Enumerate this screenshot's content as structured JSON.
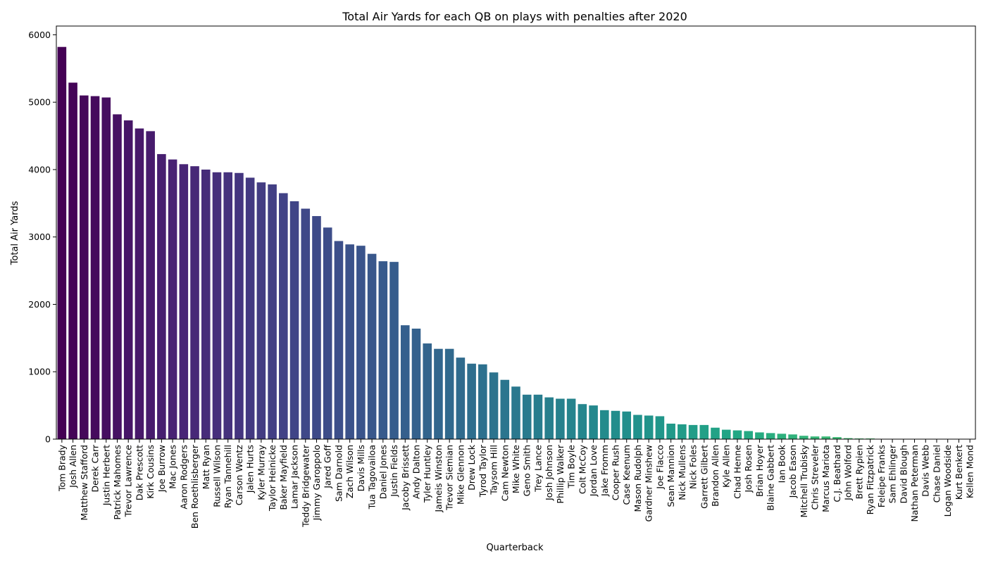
{
  "chart_data": {
    "type": "bar",
    "title": "Total Air Yards for each QB on plays with penalties after 2020",
    "xlabel": "Quarterback",
    "ylabel": "Total Air Yards",
    "ylim": [
      0,
      6130
    ],
    "yticks": [
      0,
      1000,
      2000,
      3000,
      4000,
      5000,
      6000
    ],
    "colormap": "viridis",
    "categories": [
      "Tom Brady",
      "Josh Allen",
      "Matthew Stafford",
      "Derek Carr",
      "Justin Herbert",
      "Patrick Mahomes",
      "Trevor Lawrence",
      "Dak Prescott",
      "Kirk Cousins",
      "Joe Burrow",
      "Mac Jones",
      "Aaron Rodgers",
      "Ben Roethlisberger",
      "Matt Ryan",
      "Russell Wilson",
      "Ryan Tannehill",
      "Carson Wentz",
      "Jalen Hurts",
      "Kyler Murray",
      "Taylor Heinicke",
      "Baker Mayfield",
      "Lamar Jackson",
      "Teddy Bridgewater",
      "Jimmy Garoppolo",
      "Jared Goff",
      "Sam Darnold",
      "Zach Wilson",
      "Davis Mills",
      "Tua Tagovailoa",
      "Daniel Jones",
      "Justin Fields",
      "Jacoby Brissett",
      "Andy Dalton",
      "Tyler Huntley",
      "Jameis Winston",
      "Trevor Siemian",
      "Mike Glennon",
      "Drew Lock",
      "Tyrod Taylor",
      "Taysom Hill",
      "Cam Newton",
      "Mike White",
      "Geno Smith",
      "Trey Lance",
      "Josh Johnson",
      "Phillip Walker",
      "Tim Boyle",
      "Colt McCoy",
      "Jordan Love",
      "Jake Fromm",
      "Cooper Rush",
      "Case Keenum",
      "Mason Rudolph",
      "Gardner Minshew",
      "Joe Flacco",
      "Sean Mannion",
      "Nick Mullens",
      "Nick Foles",
      "Garrett Gilbert",
      "Brandon Allen",
      "Kyle Allen",
      "Chad Henne",
      "Josh Rosen",
      "Brian Hoyer",
      "Blaine Gabbert",
      "Ian Book",
      "Jacob Eason",
      "Mitchell Trubisky",
      "Chris Streveler",
      "Marcus Mariota",
      "C.J. Beathard",
      "John Wolford",
      "Brett Rypien",
      "Ryan Fitzpatrick",
      "Feleipe Franks",
      "Sam Ehlinger",
      "David Blough",
      "Nathan Peterman",
      "Davis Webb",
      "Chase Daniel",
      "Logan Woodside",
      "Kurt Benkert",
      "Kellen Mond"
    ],
    "values": [
      5820,
      5290,
      5100,
      5090,
      5070,
      4820,
      4730,
      4610,
      4570,
      4230,
      4150,
      4080,
      4050,
      4000,
      3960,
      3960,
      3950,
      3880,
      3810,
      3780,
      3650,
      3530,
      3420,
      3310,
      3140,
      2940,
      2890,
      2870,
      2750,
      2640,
      2630,
      1690,
      1640,
      1420,
      1340,
      1340,
      1210,
      1120,
      1110,
      990,
      880,
      780,
      660,
      660,
      620,
      600,
      600,
      520,
      500,
      430,
      420,
      410,
      360,
      350,
      340,
      230,
      220,
      210,
      210,
      170,
      140,
      130,
      120,
      100,
      90,
      80,
      70,
      50,
      40,
      40,
      30,
      15,
      10,
      10,
      5,
      5,
      3,
      3,
      2,
      2,
      1,
      1,
      1
    ]
  }
}
